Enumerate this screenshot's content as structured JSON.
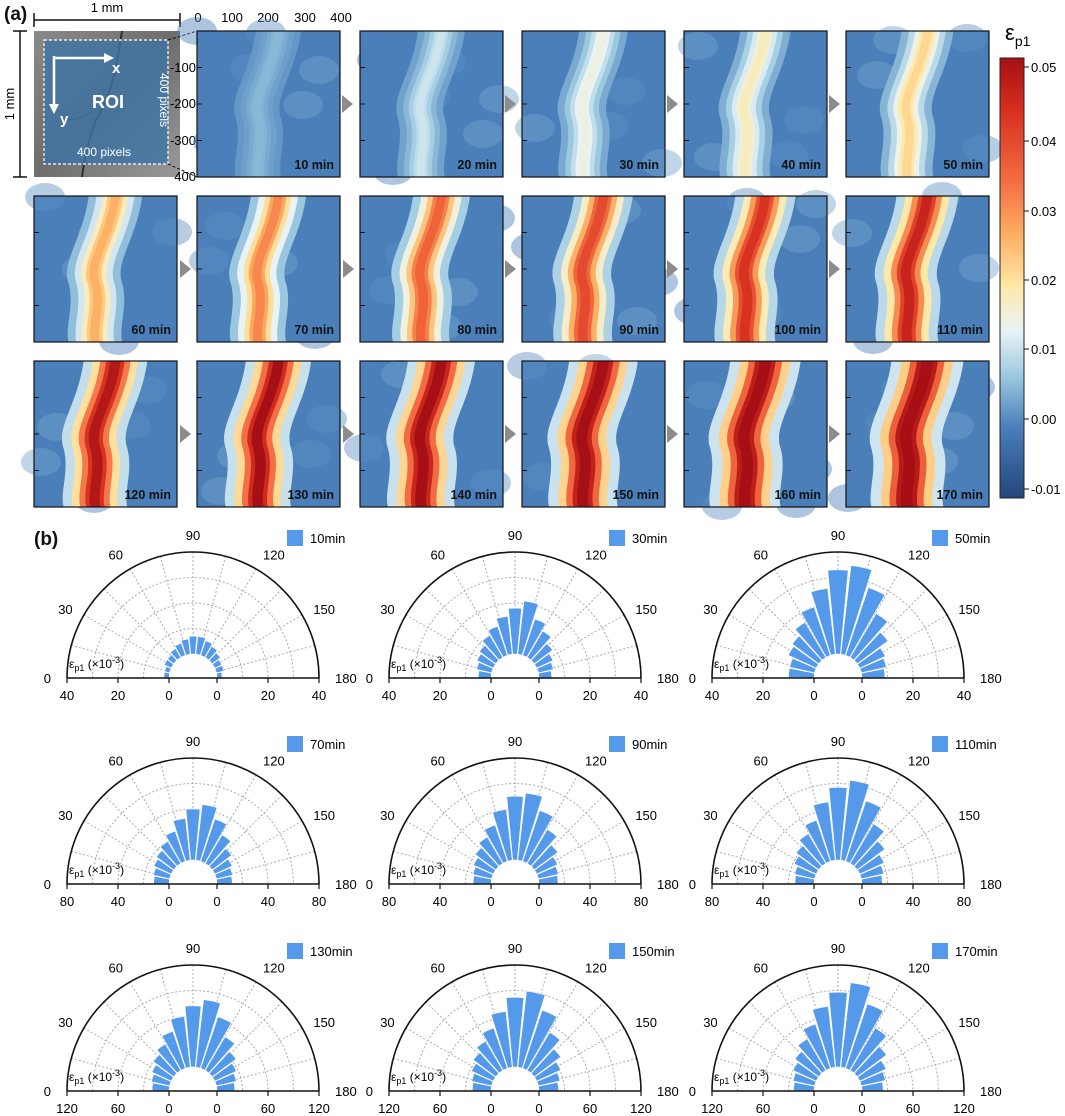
{
  "panel_a": {
    "label": "(a)",
    "scale_x_label": "1 mm",
    "scale_y_label": "1 mm",
    "roi_label": "ROI",
    "axis_x": "x",
    "axis_y": "y",
    "roi_width_label": "400 pixels",
    "roi_height_label": "400 pixels",
    "top_ticks": [
      "0",
      "100",
      "200",
      "300",
      "400"
    ],
    "left_ticks": [
      "-100",
      "-200",
      "-300",
      "400"
    ],
    "colorbar": {
      "title": "ε",
      "title_sub": "p1",
      "ticks": [
        "0.05",
        "0.04",
        "0.03",
        "0.02",
        "0.01",
        "0.00",
        "-0.01"
      ]
    },
    "strain_frames": [
      {
        "time": "10 min",
        "peak_strain": 0.004
      },
      {
        "time": "20 min",
        "peak_strain": 0.01
      },
      {
        "time": "30 min",
        "peak_strain": 0.014
      },
      {
        "time": "40 min",
        "peak_strain": 0.017
      },
      {
        "time": "50 min",
        "peak_strain": 0.021
      },
      {
        "time": "60 min",
        "peak_strain": 0.026
      },
      {
        "time": "70 min",
        "peak_strain": 0.031
      },
      {
        "time": "80 min",
        "peak_strain": 0.036
      },
      {
        "time": "90 min",
        "peak_strain": 0.04
      },
      {
        "time": "100 min",
        "peak_strain": 0.044
      },
      {
        "time": "110 min",
        "peak_strain": 0.047
      },
      {
        "time": "120 min",
        "peak_strain": 0.05
      },
      {
        "time": "130 min",
        "peak_strain": 0.052
      },
      {
        "time": "140 min",
        "peak_strain": 0.053
      },
      {
        "time": "150 min",
        "peak_strain": 0.054
      },
      {
        "time": "160 min",
        "peak_strain": 0.055
      },
      {
        "time": "170 min",
        "peak_strain": 0.056
      }
    ],
    "colors": {
      "low": "#2c5e9c",
      "background": "#4a7fba",
      "mid": "#e9f1f4",
      "high": "#a50f15"
    }
  },
  "panel_b": {
    "label": "(b)",
    "bar_color": "#5599ea",
    "angle_ticks": [
      "0",
      "30",
      "60",
      "90",
      "120",
      "150",
      "180"
    ],
    "radial_label": "ε",
    "radial_label_sub": "p1",
    "radial_label_unit": " (×10",
    "radial_label_exp": "-3",
    "radial_label_close": ")"
  },
  "chart_data": [
    {
      "type": "bar",
      "subtype": "polar-semicircle",
      "legend": "10min",
      "angles_deg": [
        6,
        18,
        30,
        42,
        54,
        66,
        78,
        90,
        102,
        114,
        126,
        138,
        150,
        162,
        174
      ],
      "values": [
        2,
        2,
        3,
        3,
        4,
        5,
        6,
        7,
        7,
        6,
        5,
        4,
        3,
        3,
        2
      ],
      "rlim": [
        0,
        40
      ],
      "radial_ticks": [
        "40",
        "20",
        "0",
        "0",
        "20",
        "40"
      ]
    },
    {
      "type": "bar",
      "subtype": "polar-semicircle",
      "legend": "30min",
      "angles_deg": [
        6,
        18,
        30,
        42,
        54,
        66,
        78,
        90,
        102,
        114,
        126,
        138,
        150,
        162,
        174
      ],
      "values": [
        5,
        6,
        7,
        8,
        10,
        12,
        15,
        18,
        21,
        15,
        12,
        9,
        7,
        6,
        5
      ],
      "rlim": [
        0,
        40
      ],
      "radial_ticks": [
        "40",
        "20",
        "0",
        "0",
        "20",
        "40"
      ]
    },
    {
      "type": "bar",
      "subtype": "polar-semicircle",
      "legend": "50min",
      "angles_deg": [
        6,
        18,
        30,
        42,
        54,
        66,
        78,
        90,
        102,
        114,
        126,
        138,
        150,
        162,
        174
      ],
      "values": [
        10,
        10,
        12,
        13,
        16,
        20,
        26,
        33,
        35,
        28,
        20,
        15,
        11,
        10,
        9
      ],
      "rlim": [
        0,
        40
      ],
      "radial_ticks": [
        "40",
        "20",
        "0",
        "0",
        "20",
        "40"
      ]
    },
    {
      "type": "bar",
      "subtype": "polar-semicircle",
      "legend": "70min",
      "angles_deg": [
        6,
        18,
        30,
        42,
        54,
        66,
        78,
        90,
        102,
        114,
        126,
        138,
        150,
        162,
        174
      ],
      "values": [
        12,
        13,
        15,
        17,
        20,
        25,
        33,
        40,
        44,
        35,
        26,
        19,
        15,
        13,
        12
      ],
      "rlim": [
        0,
        80
      ],
      "radial_ticks": [
        "80",
        "40",
        "0",
        "0",
        "40",
        "80"
      ]
    },
    {
      "type": "bar",
      "subtype": "polar-semicircle",
      "legend": "90min",
      "angles_deg": [
        6,
        18,
        30,
        42,
        54,
        66,
        78,
        90,
        102,
        114,
        126,
        138,
        150,
        162,
        174
      ],
      "values": [
        14,
        15,
        17,
        20,
        24,
        30,
        40,
        50,
        53,
        42,
        31,
        23,
        18,
        16,
        15
      ],
      "rlim": [
        0,
        80
      ],
      "radial_ticks": [
        "80",
        "40",
        "0",
        "0",
        "40",
        "80"
      ]
    },
    {
      "type": "bar",
      "subtype": "polar-semicircle",
      "legend": "110min",
      "angles_deg": [
        6,
        18,
        30,
        42,
        54,
        66,
        78,
        90,
        102,
        114,
        126,
        138,
        150,
        162,
        174
      ],
      "values": [
        15,
        16,
        19,
        22,
        27,
        34,
        46,
        57,
        63,
        50,
        36,
        27,
        21,
        18,
        16
      ],
      "rlim": [
        0,
        80
      ],
      "radial_ticks": [
        "80",
        "40",
        "0",
        "0",
        "40",
        "80"
      ]
    },
    {
      "type": "bar",
      "subtype": "polar-semicircle",
      "legend": "130min",
      "angles_deg": [
        6,
        18,
        30,
        42,
        54,
        66,
        78,
        90,
        102,
        114,
        126,
        138,
        150,
        162,
        174
      ],
      "values": [
        20,
        22,
        25,
        30,
        36,
        46,
        60,
        72,
        80,
        64,
        46,
        35,
        28,
        24,
        21
      ],
      "rlim": [
        0,
        120
      ],
      "radial_ticks": [
        "120",
        "60",
        "0",
        "0",
        "60",
        "120"
      ]
    },
    {
      "type": "bar",
      "subtype": "polar-semicircle",
      "legend": "150min",
      "angles_deg": [
        6,
        18,
        30,
        42,
        54,
        66,
        78,
        90,
        102,
        114,
        126,
        138,
        150,
        162,
        174
      ],
      "values": [
        22,
        24,
        28,
        33,
        40,
        50,
        66,
        82,
        90,
        72,
        52,
        39,
        31,
        26,
        23
      ],
      "rlim": [
        0,
        120
      ],
      "radial_ticks": [
        "120",
        "60",
        "0",
        "0",
        "60",
        "120"
      ]
    },
    {
      "type": "bar",
      "subtype": "polar-semicircle",
      "legend": "170min",
      "angles_deg": [
        6,
        18,
        30,
        42,
        54,
        66,
        78,
        90,
        102,
        114,
        126,
        138,
        150,
        162,
        174
      ],
      "values": [
        24,
        26,
        30,
        35,
        43,
        55,
        72,
        88,
        100,
        80,
        58,
        43,
        34,
        29,
        25
      ],
      "rlim": [
        0,
        120
      ],
      "radial_ticks": [
        "120",
        "60",
        "0",
        "0",
        "60",
        "120"
      ]
    }
  ]
}
